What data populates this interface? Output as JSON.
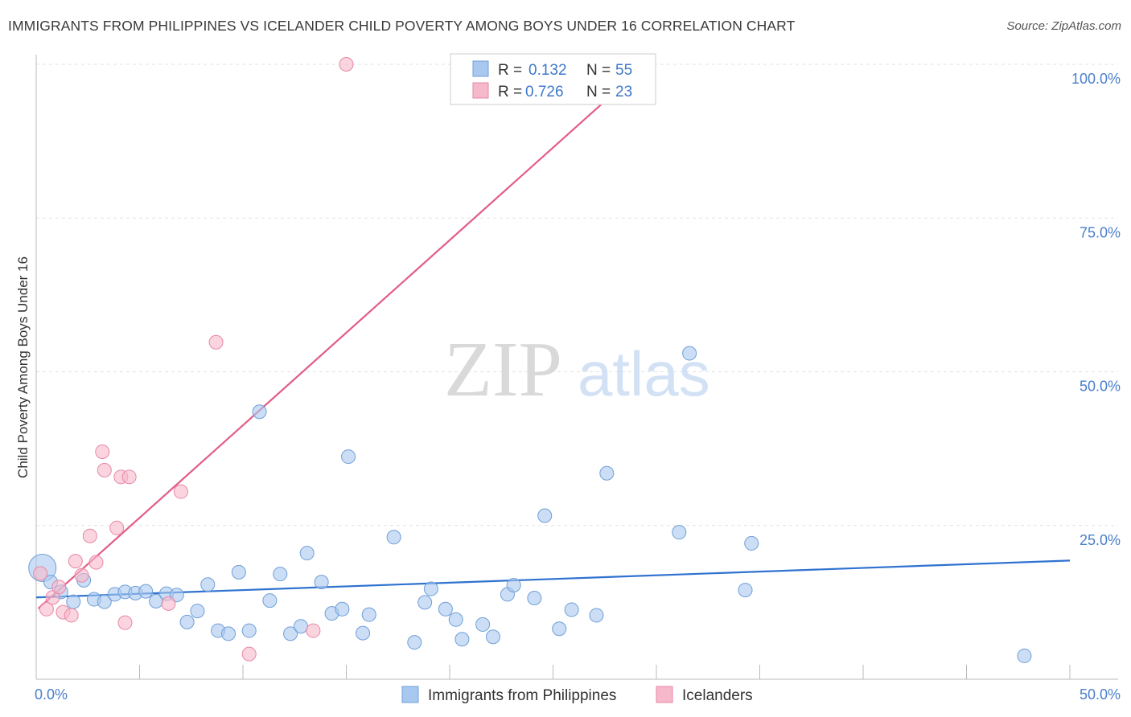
{
  "title": "IMMIGRANTS FROM PHILIPPINES VS ICELANDER CHILD POVERTY AMONG BOYS UNDER 16 CORRELATION CHART",
  "source": "Source: ZipAtlas.com",
  "watermark": {
    "zip": "ZIP",
    "atlas": "atlas"
  },
  "legend": {
    "rows": [
      {
        "r_label": "R =",
        "r_value": "0.132",
        "n_label": "N =",
        "n_value": "55",
        "color": "#a9c8ef"
      },
      {
        "r_label": "R =",
        "r_value": "0.726",
        "n_label": "N =",
        "n_value": "23",
        "color": "#f6b9cb"
      }
    ]
  },
  "chart_data": {
    "type": "scatter",
    "ylabel": "Child Poverty Among Boys Under 16",
    "xlabel": "",
    "xlim": [
      0,
      50
    ],
    "ylim": [
      0,
      100
    ],
    "x_tick_labels": [
      "0.0%",
      "50.0%"
    ],
    "y_tick_labels": [
      "25.0%",
      "50.0%",
      "75.0%",
      "100.0%"
    ],
    "grid": true,
    "legend_position": "top-center",
    "series": [
      {
        "name": "Immigrants from Philippines",
        "color": "#a9c8ef",
        "edge": "#6f9fd8",
        "trend_color": "#2f72d0",
        "trend": {
          "x": [
            0,
            50
          ],
          "y": [
            13.3,
            19.3
          ]
        },
        "points": [
          {
            "x": 0.3,
            "y": 18.1,
            "big": true
          },
          {
            "x": 0.7,
            "y": 15.8
          },
          {
            "x": 1.2,
            "y": 14.2
          },
          {
            "x": 1.8,
            "y": 12.6
          },
          {
            "x": 2.3,
            "y": 16.1
          },
          {
            "x": 2.8,
            "y": 13.0
          },
          {
            "x": 3.3,
            "y": 12.6
          },
          {
            "x": 3.8,
            "y": 13.8
          },
          {
            "x": 4.3,
            "y": 14.2
          },
          {
            "x": 4.8,
            "y": 14.0
          },
          {
            "x": 5.3,
            "y": 14.3
          },
          {
            "x": 5.8,
            "y": 12.7
          },
          {
            "x": 6.3,
            "y": 13.9
          },
          {
            "x": 6.8,
            "y": 13.7
          },
          {
            "x": 7.3,
            "y": 9.3
          },
          {
            "x": 7.8,
            "y": 11.1
          },
          {
            "x": 8.3,
            "y": 15.4
          },
          {
            "x": 8.8,
            "y": 7.9
          },
          {
            "x": 9.3,
            "y": 7.4
          },
          {
            "x": 9.8,
            "y": 17.4
          },
          {
            "x": 10.3,
            "y": 7.9
          },
          {
            "x": 10.8,
            "y": 43.5
          },
          {
            "x": 11.3,
            "y": 12.8
          },
          {
            "x": 11.8,
            "y": 17.1
          },
          {
            "x": 12.3,
            "y": 7.4
          },
          {
            "x": 12.8,
            "y": 8.6
          },
          {
            "x": 13.1,
            "y": 20.5
          },
          {
            "x": 13.8,
            "y": 15.8
          },
          {
            "x": 14.3,
            "y": 10.7
          },
          {
            "x": 14.8,
            "y": 11.4
          },
          {
            "x": 15.1,
            "y": 36.2
          },
          {
            "x": 15.8,
            "y": 7.5
          },
          {
            "x": 16.1,
            "y": 10.5
          },
          {
            "x": 17.3,
            "y": 23.1
          },
          {
            "x": 18.3,
            "y": 6.0
          },
          {
            "x": 18.8,
            "y": 12.5
          },
          {
            "x": 19.1,
            "y": 14.7
          },
          {
            "x": 19.8,
            "y": 11.4
          },
          {
            "x": 20.3,
            "y": 9.7
          },
          {
            "x": 20.6,
            "y": 6.5
          },
          {
            "x": 21.6,
            "y": 8.9
          },
          {
            "x": 22.1,
            "y": 6.9
          },
          {
            "x": 22.8,
            "y": 13.8
          },
          {
            "x": 23.1,
            "y": 15.3
          },
          {
            "x": 24.1,
            "y": 13.2
          },
          {
            "x": 24.6,
            "y": 26.6
          },
          {
            "x": 25.3,
            "y": 8.2
          },
          {
            "x": 25.9,
            "y": 11.3
          },
          {
            "x": 27.1,
            "y": 10.4
          },
          {
            "x": 27.6,
            "y": 33.5
          },
          {
            "x": 31.1,
            "y": 23.9
          },
          {
            "x": 31.6,
            "y": 53.0
          },
          {
            "x": 34.3,
            "y": 14.5
          },
          {
            "x": 34.6,
            "y": 22.1
          },
          {
            "x": 47.8,
            "y": 3.8
          }
        ]
      },
      {
        "name": "Icelanders",
        "color": "#f6b9cb",
        "edge": "#e887a6",
        "trend_color": "#e25c86",
        "trend": {
          "x": [
            0.1,
            29.5
          ],
          "y": [
            11.5,
            100
          ]
        },
        "points": [
          {
            "x": 0.2,
            "y": 17.2
          },
          {
            "x": 0.5,
            "y": 11.4
          },
          {
            "x": 0.8,
            "y": 13.3
          },
          {
            "x": 1.1,
            "y": 15.0
          },
          {
            "x": 1.3,
            "y": 10.9
          },
          {
            "x": 1.7,
            "y": 10.4
          },
          {
            "x": 1.9,
            "y": 19.2
          },
          {
            "x": 2.2,
            "y": 16.9
          },
          {
            "x": 2.6,
            "y": 23.3
          },
          {
            "x": 2.9,
            "y": 19.0
          },
          {
            "x": 3.2,
            "y": 37.0
          },
          {
            "x": 3.3,
            "y": 34.0
          },
          {
            "x": 3.9,
            "y": 24.6
          },
          {
            "x": 4.1,
            "y": 32.9
          },
          {
            "x": 4.3,
            "y": 9.2
          },
          {
            "x": 4.5,
            "y": 32.9
          },
          {
            "x": 6.4,
            "y": 12.3
          },
          {
            "x": 7.0,
            "y": 30.5
          },
          {
            "x": 8.7,
            "y": 54.8
          },
          {
            "x": 10.3,
            "y": 4.1
          },
          {
            "x": 13.4,
            "y": 7.9
          },
          {
            "x": 15.0,
            "y": 100.0
          },
          {
            "x": 28.4,
            "y": 100.0
          }
        ]
      }
    ]
  }
}
